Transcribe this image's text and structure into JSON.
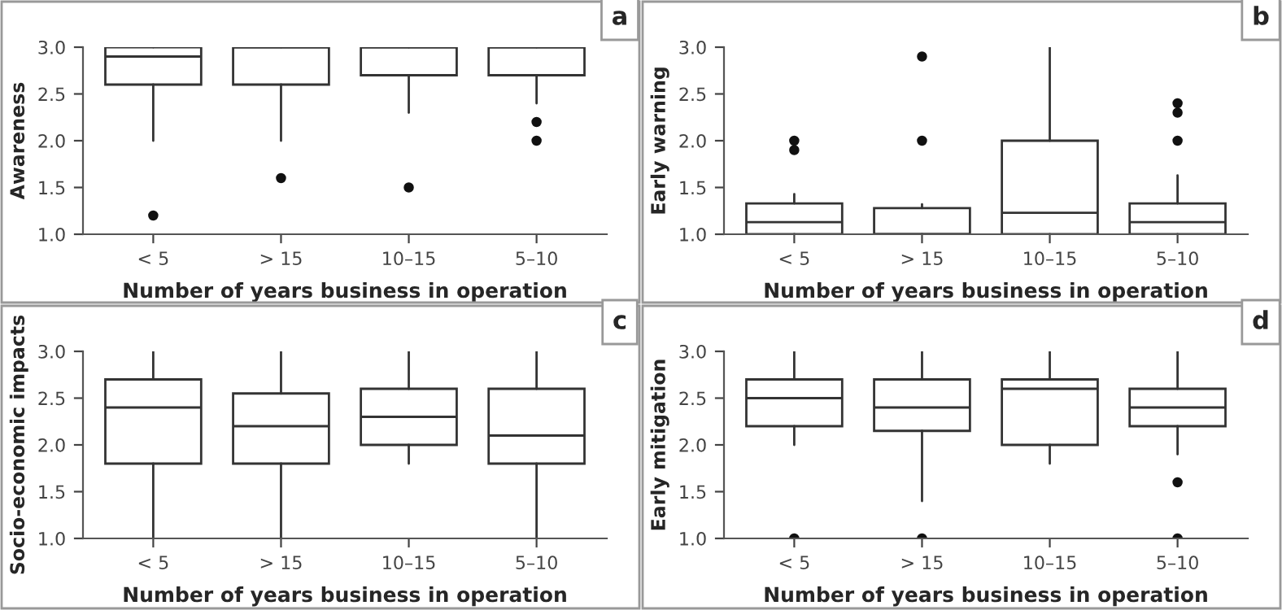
{
  "chart_data": [
    {
      "type": "box",
      "categories": [
        "< 5",
        "> 15",
        "10–15",
        "5–10"
      ],
      "xlabel": "Number of years business in operation",
      "ylabel": "Awareness",
      "ylim": [
        1.0,
        3.0
      ],
      "yticks": [
        {
          "value": 1.0,
          "label": "1.0"
        },
        {
          "value": 1.5,
          "label": "1.5"
        },
        {
          "value": 2.0,
          "label": "2.0"
        },
        {
          "value": 2.5,
          "label": "2.5"
        },
        {
          "value": 3.0,
          "label": "3.0"
        }
      ],
      "annotations": [
        "a"
      ],
      "grid": false,
      "color": "#ffffff",
      "boxes": [
        {
          "low": 2.0,
          "q1": 2.6,
          "median": 2.9,
          "q3": 3.0,
          "high": 3.0,
          "outliers": [
            1.2
          ]
        },
        {
          "low": 2.0,
          "q1": 2.6,
          "median": 3.0,
          "q3": 3.0,
          "high": 3.0,
          "outliers": [
            1.6
          ]
        },
        {
          "low": 2.3,
          "q1": 2.7,
          "median": 3.0,
          "q3": 3.0,
          "high": 3.0,
          "outliers": [
            1.5
          ]
        },
        {
          "low": 2.4,
          "q1": 2.7,
          "median": 3.0,
          "q3": 3.0,
          "high": 3.0,
          "outliers": [
            2.0,
            2.2
          ]
        }
      ]
    },
    {
      "type": "box",
      "categories": [
        "< 5",
        "> 15",
        "10–15",
        "5–10"
      ],
      "xlabel": "Number of years business in operation",
      "ylabel": "Early warning",
      "ylim": [
        1.0,
        3.0
      ],
      "yticks": [
        {
          "value": 1.0,
          "label": "1.0"
        },
        {
          "value": 1.5,
          "label": "1.5"
        },
        {
          "value": 2.0,
          "label": "2.0"
        },
        {
          "value": 2.5,
          "label": "2.5"
        },
        {
          "value": 3.0,
          "label": "3.0"
        }
      ],
      "annotations": [
        "b"
      ],
      "grid": false,
      "color": "#ffffff",
      "boxes": [
        {
          "low": 1.0,
          "q1": 1.0,
          "median": 1.13,
          "q3": 1.33,
          "high": 1.43,
          "outliers": [
            1.9,
            2.0
          ]
        },
        {
          "low": 1.0,
          "q1": 1.0,
          "median": 1.0,
          "q3": 1.28,
          "high": 1.32,
          "outliers": [
            2.0,
            2.9
          ]
        },
        {
          "low": 1.0,
          "q1": 1.0,
          "median": 1.23,
          "q3": 2.0,
          "high": 3.0
        },
        {
          "low": 1.0,
          "q1": 1.0,
          "median": 1.13,
          "q3": 1.33,
          "high": 1.63,
          "outliers": [
            2.0,
            2.3,
            2.4
          ]
        }
      ]
    },
    {
      "type": "box",
      "categories": [
        "< 5",
        "> 15",
        "10–15",
        "5–10"
      ],
      "xlabel": "Number of years business in operation",
      "ylabel": "Socio-economic impacts",
      "ylim": [
        1.0,
        3.0
      ],
      "yticks": [
        {
          "value": 1.0,
          "label": "1.0"
        },
        {
          "value": 1.5,
          "label": "1.5"
        },
        {
          "value": 2.0,
          "label": "2.0"
        },
        {
          "value": 2.5,
          "label": "2.5"
        },
        {
          "value": 3.0,
          "label": "3.0"
        }
      ],
      "annotations": [
        "c"
      ],
      "grid": false,
      "color": "#ffffff",
      "boxes": [
        {
          "low": 1.0,
          "q1": 1.8,
          "median": 2.4,
          "q3": 2.7,
          "high": 3.0
        },
        {
          "low": 1.0,
          "q1": 1.8,
          "median": 2.2,
          "q3": 2.55,
          "high": 3.0
        },
        {
          "low": 1.8,
          "q1": 2.0,
          "median": 2.3,
          "q3": 2.6,
          "high": 3.0
        },
        {
          "low": 1.0,
          "q1": 1.8,
          "median": 2.1,
          "q3": 2.6,
          "high": 3.0
        }
      ]
    },
    {
      "type": "box",
      "categories": [
        "< 5",
        "> 15",
        "10–15",
        "5–10"
      ],
      "xlabel": "Number of years business in operation",
      "ylabel": "Early mitigation",
      "ylim": [
        1.0,
        3.0
      ],
      "yticks": [
        {
          "value": 1.0,
          "label": "1.0"
        },
        {
          "value": 1.5,
          "label": "1.5"
        },
        {
          "value": 2.0,
          "label": "2.0"
        },
        {
          "value": 2.5,
          "label": "2.5"
        },
        {
          "value": 3.0,
          "label": "3.0"
        }
      ],
      "annotations": [
        "d"
      ],
      "grid": false,
      "color": "#ffffff",
      "boxes": [
        {
          "low": 2.0,
          "q1": 2.2,
          "median": 2.5,
          "q3": 2.7,
          "high": 3.0,
          "outliers": [
            1.0
          ]
        },
        {
          "low": 1.4,
          "q1": 2.15,
          "median": 2.4,
          "q3": 2.7,
          "high": 3.0,
          "outliers": [
            1.0
          ]
        },
        {
          "low": 1.8,
          "q1": 2.0,
          "median": 2.6,
          "q3": 2.7,
          "high": 3.0
        },
        {
          "low": 1.9,
          "q1": 2.2,
          "median": 2.4,
          "q3": 2.6,
          "high": 3.0,
          "outliers": [
            1.0,
            1.6
          ]
        }
      ]
    }
  ]
}
